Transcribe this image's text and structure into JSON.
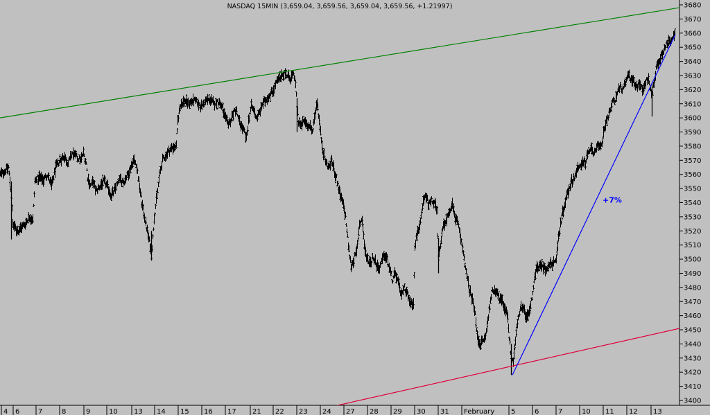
{
  "chart_data": {
    "type": "ohlc",
    "title": "NASDAQ 15MIN (3,659.04, 3,659.56, 3,659.04, 3,659.56, +1.21997)",
    "ylim": [
      3398,
      3684
    ],
    "y_ticks": [
      3400,
      3410,
      3420,
      3430,
      3440,
      3450,
      3460,
      3470,
      3480,
      3490,
      3500,
      3510,
      3520,
      3530,
      3540,
      3550,
      3560,
      3570,
      3580,
      3590,
      3600,
      3610,
      3620,
      3630,
      3640,
      3650,
      3660,
      3670,
      3680
    ],
    "x_ticks": [
      {
        "label": "4",
        "pos": 2
      },
      {
        "label": "6",
        "pos": 19
      },
      {
        "label": "7",
        "pos": 52
      },
      {
        "label": "8",
        "pos": 86
      },
      {
        "label": "9",
        "pos": 121
      },
      {
        "label": "10",
        "pos": 154
      },
      {
        "label": "13",
        "pos": 190
      },
      {
        "label": "14",
        "pos": 223
      },
      {
        "label": "15",
        "pos": 257
      },
      {
        "label": "16",
        "pos": 291
      },
      {
        "label": "17",
        "pos": 325
      },
      {
        "label": "21",
        "pos": 361
      },
      {
        "label": "22",
        "pos": 394
      },
      {
        "label": "23",
        "pos": 428
      },
      {
        "label": "24",
        "pos": 462
      },
      {
        "label": "27",
        "pos": 496
      },
      {
        "label": "28",
        "pos": 530
      },
      {
        "label": "29",
        "pos": 564
      },
      {
        "label": "30",
        "pos": 598
      },
      {
        "label": "31",
        "pos": 632
      },
      {
        "label": "February",
        "pos": 666
      },
      {
        "label": "5",
        "pos": 734
      },
      {
        "label": "6",
        "pos": 768
      },
      {
        "label": "7",
        "pos": 802
      },
      {
        "label": "10",
        "pos": 836
      },
      {
        "label": "11",
        "pos": 870
      },
      {
        "label": "12",
        "pos": 904
      },
      {
        "label": "13",
        "pos": 939
      }
    ],
    "price_path": [
      [
        0,
        3560
      ],
      [
        6,
        3562
      ],
      [
        12,
        3565
      ],
      [
        16,
        3545
      ],
      [
        18,
        3525
      ],
      [
        24,
        3520
      ],
      [
        30,
        3522
      ],
      [
        36,
        3525
      ],
      [
        42,
        3530
      ],
      [
        47,
        3528
      ],
      [
        50,
        3555
      ],
      [
        56,
        3558
      ],
      [
        62,
        3556
      ],
      [
        68,
        3560
      ],
      [
        74,
        3552
      ],
      [
        80,
        3565
      ],
      [
        86,
        3570
      ],
      [
        92,
        3573
      ],
      [
        98,
        3568
      ],
      [
        104,
        3575
      ],
      [
        110,
        3572
      ],
      [
        116,
        3570
      ],
      [
        120,
        3575
      ],
      [
        124,
        3568
      ],
      [
        126,
        3558
      ],
      [
        130,
        3552
      ],
      [
        134,
        3555
      ],
      [
        138,
        3548
      ],
      [
        144,
        3552
      ],
      [
        150,
        3555
      ],
      [
        156,
        3550
      ],
      [
        160,
        3545
      ],
      [
        164,
        3548
      ],
      [
        168,
        3552
      ],
      [
        172,
        3556
      ],
      [
        178,
        3555
      ],
      [
        184,
        3560
      ],
      [
        188,
        3565
      ],
      [
        192,
        3570
      ],
      [
        196,
        3568
      ],
      [
        200,
        3555
      ],
      [
        204,
        3540
      ],
      [
        208,
        3530
      ],
      [
        212,
        3520
      ],
      [
        216,
        3510
      ],
      [
        218,
        3503
      ],
      [
        220,
        3515
      ],
      [
        222,
        3530
      ],
      [
        226,
        3545
      ],
      [
        230,
        3560
      ],
      [
        234,
        3570
      ],
      [
        238,
        3573
      ],
      [
        242,
        3576
      ],
      [
        248,
        3579
      ],
      [
        254,
        3580
      ],
      [
        256,
        3598
      ],
      [
        260,
        3610
      ],
      [
        266,
        3612
      ],
      [
        272,
        3610
      ],
      [
        278,
        3612
      ],
      [
        284,
        3611
      ],
      [
        290,
        3608
      ],
      [
        296,
        3612
      ],
      [
        302,
        3613
      ],
      [
        308,
        3610
      ],
      [
        314,
        3612
      ],
      [
        320,
        3608
      ],
      [
        324,
        3600
      ],
      [
        328,
        3596
      ],
      [
        332,
        3598
      ],
      [
        336,
        3603
      ],
      [
        340,
        3606
      ],
      [
        344,
        3598
      ],
      [
        348,
        3594
      ],
      [
        352,
        3590
      ],
      [
        355,
        3585
      ],
      [
        358,
        3598
      ],
      [
        362,
        3608
      ],
      [
        366,
        3605
      ],
      [
        370,
        3600
      ],
      [
        374,
        3604
      ],
      [
        378,
        3610
      ],
      [
        382,
        3612
      ],
      [
        386,
        3615
      ],
      [
        390,
        3617
      ],
      [
        394,
        3620
      ],
      [
        398,
        3625
      ],
      [
        402,
        3627
      ],
      [
        406,
        3630
      ],
      [
        410,
        3632
      ],
      [
        414,
        3630
      ],
      [
        418,
        3628
      ],
      [
        422,
        3630
      ],
      [
        425,
        3628
      ],
      [
        428,
        3610
      ],
      [
        430,
        3598
      ],
      [
        434,
        3594
      ],
      [
        438,
        3598
      ],
      [
        442,
        3596
      ],
      [
        446,
        3594
      ],
      [
        450,
        3590
      ],
      [
        454,
        3603
      ],
      [
        457,
        3612
      ],
      [
        460,
        3598
      ],
      [
        463,
        3585
      ],
      [
        466,
        3575
      ],
      [
        470,
        3568
      ],
      [
        474,
        3565
      ],
      [
        478,
        3570
      ],
      [
        482,
        3562
      ],
      [
        486,
        3555
      ],
      [
        490,
        3545
      ],
      [
        494,
        3540
      ],
      [
        498,
        3530
      ],
      [
        502,
        3510
      ],
      [
        506,
        3495
      ],
      [
        510,
        3500
      ],
      [
        514,
        3505
      ],
      [
        518,
        3525
      ],
      [
        522,
        3528
      ],
      [
        526,
        3505
      ],
      [
        530,
        3500
      ],
      [
        534,
        3497
      ],
      [
        538,
        3502
      ],
      [
        542,
        3497
      ],
      [
        546,
        3493
      ],
      [
        550,
        3498
      ],
      [
        554,
        3503
      ],
      [
        558,
        3500
      ],
      [
        562,
        3492
      ],
      [
        566,
        3485
      ],
      [
        570,
        3490
      ],
      [
        574,
        3483
      ],
      [
        578,
        3475
      ],
      [
        582,
        3480
      ],
      [
        586,
        3478
      ],
      [
        590,
        3470
      ],
      [
        594,
        3468
      ],
      [
        596,
        3470
      ],
      [
        598,
        3510
      ],
      [
        602,
        3520
      ],
      [
        606,
        3525
      ],
      [
        610,
        3540
      ],
      [
        614,
        3545
      ],
      [
        618,
        3538
      ],
      [
        622,
        3542
      ],
      [
        626,
        3540
      ],
      [
        630,
        3533
      ],
      [
        632,
        3500
      ],
      [
        636,
        3515
      ],
      [
        640,
        3525
      ],
      [
        644,
        3528
      ],
      [
        648,
        3535
      ],
      [
        652,
        3538
      ],
      [
        656,
        3530
      ],
      [
        660,
        3525
      ],
      [
        664,
        3515
      ],
      [
        668,
        3505
      ],
      [
        672,
        3490
      ],
      [
        676,
        3480
      ],
      [
        680,
        3472
      ],
      [
        684,
        3465
      ],
      [
        688,
        3445
      ],
      [
        692,
        3440
      ],
      [
        696,
        3442
      ],
      [
        700,
        3445
      ],
      [
        704,
        3460
      ],
      [
        708,
        3475
      ],
      [
        712,
        3478
      ],
      [
        716,
        3478
      ],
      [
        720,
        3472
      ],
      [
        724,
        3470
      ],
      [
        728,
        3465
      ],
      [
        732,
        3460
      ],
      [
        734,
        3445
      ],
      [
        737,
        3430
      ],
      [
        740,
        3428
      ],
      [
        742,
        3438
      ],
      [
        746,
        3455
      ],
      [
        750,
        3465
      ],
      [
        754,
        3465
      ],
      [
        758,
        3460
      ],
      [
        762,
        3462
      ],
      [
        766,
        3470
      ],
      [
        770,
        3485
      ],
      [
        774,
        3495
      ],
      [
        778,
        3495
      ],
      [
        782,
        3495
      ],
      [
        786,
        3493
      ],
      [
        790,
        3495
      ],
      [
        794,
        3497
      ],
      [
        798,
        3498
      ],
      [
        802,
        3500
      ],
      [
        805,
        3515
      ],
      [
        808,
        3525
      ],
      [
        812,
        3535
      ],
      [
        816,
        3543
      ],
      [
        820,
        3550
      ],
      [
        824,
        3555
      ],
      [
        828,
        3558
      ],
      [
        832,
        3563
      ],
      [
        836,
        3565
      ],
      [
        840,
        3570
      ],
      [
        844,
        3568
      ],
      [
        848,
        3575
      ],
      [
        852,
        3578
      ],
      [
        856,
        3575
      ],
      [
        860,
        3580
      ],
      [
        864,
        3578
      ],
      [
        868,
        3582
      ],
      [
        870,
        3590
      ],
      [
        874,
        3598
      ],
      [
        878,
        3602
      ],
      [
        882,
        3610
      ],
      [
        886,
        3612
      ],
      [
        890,
        3618
      ],
      [
        894,
        3622
      ],
      [
        898,
        3620
      ],
      [
        902,
        3625
      ],
      [
        906,
        3630
      ],
      [
        910,
        3628
      ],
      [
        914,
        3625
      ],
      [
        918,
        3622
      ],
      [
        922,
        3625
      ],
      [
        926,
        3620
      ],
      [
        930,
        3624
      ],
      [
        934,
        3628
      ],
      [
        937,
        3622
      ],
      [
        940,
        3615
      ],
      [
        943,
        3625
      ],
      [
        946,
        3635
      ],
      [
        950,
        3640
      ],
      [
        954,
        3645
      ],
      [
        958,
        3650
      ],
      [
        962,
        3652
      ],
      [
        966,
        3655
      ],
      [
        970,
        3658
      ],
      [
        974,
        3660
      ]
    ],
    "spikes": [
      {
        "pos": 16,
        "low": 3514,
        "high": 3555
      },
      {
        "pos": 218,
        "low": 3499,
        "high": 3520
      },
      {
        "pos": 428,
        "low": 3590,
        "high": 3614
      },
      {
        "pos": 632,
        "low": 3490,
        "high": 3515
      },
      {
        "pos": 737,
        "low": 3418,
        "high": 3440
      },
      {
        "pos": 940,
        "low": 3601,
        "high": 3625
      }
    ],
    "trendlines": [
      {
        "color": "#008000",
        "from": [
          0,
          3600
        ],
        "to": [
          980,
          3678
        ]
      },
      {
        "color": "#e0003c",
        "from": [
          482,
          3396
        ],
        "to": [
          980,
          3451
        ]
      },
      {
        "color": "#0000ff",
        "from": [
          739,
          3418
        ],
        "to": [
          974,
          3659
        ]
      }
    ],
    "annotations": [
      {
        "text": "+7%",
        "pos": 883,
        "y": 3540,
        "color": "#0000ff"
      }
    ]
  }
}
